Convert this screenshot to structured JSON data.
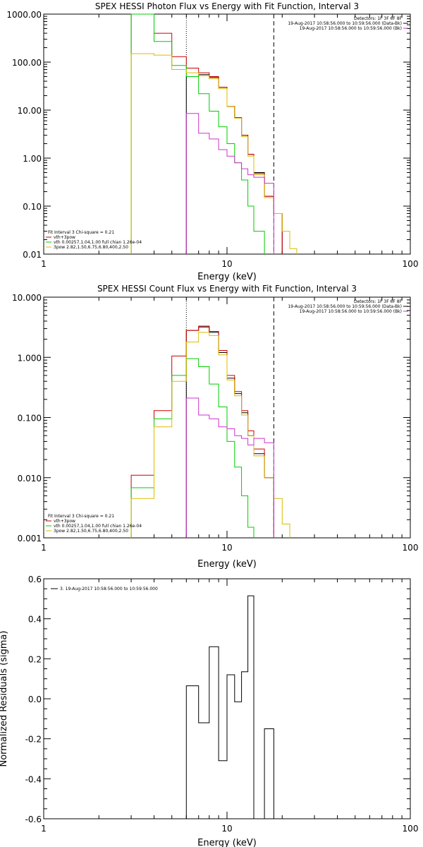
{
  "chart_data": [
    {
      "type": "line",
      "title": "SPEX HESSI Photon Flux vs Energy with Fit Function, Interval 3",
      "xlabel": "Energy (keV)",
      "ylabel": "",
      "xscale": "log",
      "yscale": "log",
      "xlim": [
        1,
        100
      ],
      "ylim": [
        0.01,
        1000
      ],
      "xticks": [
        {
          "v": 1,
          "label": "1"
        },
        {
          "v": 10,
          "label": "10"
        },
        {
          "v": 100,
          "label": "100"
        }
      ],
      "yticks": [
        {
          "v": 1000,
          "label": "1000.00"
        },
        {
          "v": 100,
          "label": "100.00"
        },
        {
          "v": 10,
          "label": "10.00"
        },
        {
          "v": 1,
          "label": "1.00"
        },
        {
          "v": 0.1,
          "label": "0.10"
        },
        {
          "v": 0.01,
          "label": "0.01"
        }
      ],
      "vlines": [
        {
          "x": 6,
          "style": "dotted"
        },
        {
          "x": 18,
          "style": "dashed"
        }
      ],
      "legend_top": [
        "Detectors: 1F 3F 6F 8F",
        "19-Aug-2017 10:58:56.000 to 10:59:56.000 (Data-Bk)",
        "19-Aug-2017 10:58:56.000 to 10:59:56.000 (Bk)"
      ],
      "legend_top_colors": [
        "",
        "#000000",
        "#cc33cc"
      ],
      "legend_bottom": [
        "Fit Interval 3   Chi-square = 0.21",
        "vth+3pow",
        "vth 0.00257,1.04,1.00  full chian 1.26e-04",
        "3pow 2.82,1.50,6.75,6.80,400,2.50"
      ],
      "legend_bottom_colors": [
        "",
        "#cc0000",
        "#00cc00",
        "#ddbb00"
      ],
      "edges": [
        3.0,
        4.0,
        5.0,
        6.0,
        7.0,
        8.0,
        9.0,
        10.0,
        11.0,
        12.0,
        13.0,
        14.0,
        16.0,
        18.0,
        20.0,
        22.0,
        24.0
      ],
      "series": [
        {
          "color": "#000000",
          "values": [
            null,
            null,
            null,
            50.0,
            55.0,
            48.0,
            30.0,
            12.0,
            7.0,
            3.0,
            1.2,
            0.5,
            0.16,
            0.07,
            null,
            null
          ]
        },
        {
          "color": "#cc0000",
          "values": [
            1000.0,
            400.0,
            130.0,
            75.0,
            60.0,
            50.0,
            30.0,
            12.0,
            7.0,
            3.0,
            1.2,
            0.48,
            0.16,
            0.07,
            null,
            null
          ]
        },
        {
          "color": "#00cc00",
          "values": [
            1000.0,
            270.0,
            85.0,
            50.0,
            22.0,
            9.5,
            4.5,
            2.0,
            0.8,
            0.35,
            0.1,
            0.03,
            null,
            null,
            null,
            null
          ]
        },
        {
          "color": "#ddbb00",
          "values": [
            150.0,
            140.0,
            70.0,
            60.0,
            52.0,
            45.0,
            28.0,
            12.0,
            6.8,
            2.8,
            1.1,
            0.45,
            0.15,
            0.07,
            0.03,
            0.013
          ]
        },
        {
          "color": "#cc33cc",
          "values": [
            null,
            null,
            null,
            8.5,
            3.3,
            2.5,
            1.5,
            1.1,
            0.8,
            0.6,
            0.45,
            0.4,
            0.3,
            null,
            null,
            null
          ]
        }
      ]
    },
    {
      "type": "line",
      "title": "SPEX HESSI Count Flux vs Energy with Fit Function, Interval 3",
      "xlabel": "Energy (keV)",
      "ylabel": "",
      "xscale": "log",
      "yscale": "log",
      "xlim": [
        1,
        100
      ],
      "ylim": [
        0.001,
        10
      ],
      "xticks": [
        {
          "v": 1,
          "label": "1"
        },
        {
          "v": 10,
          "label": "10"
        },
        {
          "v": 100,
          "label": "100"
        }
      ],
      "yticks": [
        {
          "v": 10,
          "label": "10.000"
        },
        {
          "v": 1,
          "label": "1.000"
        },
        {
          "v": 0.1,
          "label": "0.100"
        },
        {
          "v": 0.01,
          "label": "0.010"
        },
        {
          "v": 0.001,
          "label": "0.001"
        }
      ],
      "vlines": [
        {
          "x": 6,
          "style": "dotted"
        },
        {
          "x": 18,
          "style": "dashed"
        }
      ],
      "legend_top": [
        "Detectors: 1F 3F 6F 8F",
        "19-Aug-2017 10:58:56.000 to 10:59:56.000 (Data-Bk)",
        "19-Aug-2017 10:58:56.000 to 10:59:56.000 (Bk)"
      ],
      "legend_top_colors": [
        "",
        "#000000",
        "#cc33cc"
      ],
      "legend_bottom": [
        "Fit Interval 3   Chi-square = 0.21",
        "vth+3pow",
        "vth 0.00257,1.04,1.00  full chian 1.26e-04",
        "3pow 2.82,1.50,6.75,6.80,400,2.50"
      ],
      "legend_bottom_colors": [
        "",
        "#cc0000",
        "#00cc00",
        "#ddbb00"
      ],
      "edges": [
        3.0,
        4.0,
        5.0,
        6.0,
        7.0,
        8.0,
        9.0,
        10.0,
        11.0,
        12.0,
        13.0,
        14.0,
        16.0,
        18.0,
        20.0,
        22.0,
        24.0
      ],
      "series": [
        {
          "color": "#000000",
          "values": [
            null,
            null,
            null,
            2.8,
            3.2,
            2.6,
            1.2,
            0.45,
            0.25,
            0.12,
            0.05,
            0.025,
            0.01,
            null,
            null,
            null
          ]
        },
        {
          "color": "#cc0000",
          "values": [
            0.011,
            0.13,
            1.05,
            2.8,
            3.3,
            2.7,
            1.3,
            0.5,
            0.27,
            0.13,
            0.06,
            0.03,
            0.01,
            null,
            null,
            null
          ]
        },
        {
          "color": "#00cc00",
          "values": [
            0.0068,
            0.095,
            0.5,
            0.95,
            0.7,
            0.36,
            0.15,
            0.04,
            0.015,
            0.005,
            0.0015,
            null,
            null,
            null,
            null,
            null
          ]
        },
        {
          "color": "#ddbb00",
          "values": [
            0.0045,
            0.07,
            0.4,
            1.8,
            2.6,
            2.3,
            1.1,
            0.42,
            0.23,
            0.11,
            0.05,
            0.023,
            0.01,
            0.0045,
            0.0017,
            null
          ]
        },
        {
          "color": "#cc33cc",
          "values": [
            null,
            null,
            null,
            0.21,
            0.11,
            0.095,
            0.07,
            0.065,
            0.05,
            0.045,
            0.035,
            0.045,
            0.038,
            null,
            null,
            null
          ]
        }
      ]
    },
    {
      "type": "line",
      "title": "",
      "xlabel": "Energy (keV)",
      "ylabel": "Normalized Residuals (sigma)",
      "xscale": "log",
      "yscale": "linear",
      "xlim": [
        1,
        100
      ],
      "ylim": [
        -0.6,
        0.6
      ],
      "xticks": [
        {
          "v": 1,
          "label": "1"
        },
        {
          "v": 10,
          "label": "10"
        },
        {
          "v": 100,
          "label": "100"
        }
      ],
      "yticks": [
        {
          "v": 0.6,
          "label": "0.6"
        },
        {
          "v": 0.4,
          "label": "0.4"
        },
        {
          "v": 0.2,
          "label": "0.2"
        },
        {
          "v": 0.0,
          "label": "0.0"
        },
        {
          "v": -0.2,
          "label": "-0.2"
        },
        {
          "v": -0.4,
          "label": "-0.4"
        },
        {
          "v": -0.6,
          "label": "-0.6"
        }
      ],
      "vlines": [],
      "legend_top_left": "3. 19-Aug-2017 10:58:56.000 to 10:59:56.000",
      "edges": [
        6.0,
        7.0,
        8.0,
        9.0,
        10.0,
        11.0,
        12.0,
        13.0,
        14.0,
        16.0,
        18.0
      ],
      "series": [
        {
          "color": "#000000",
          "values": [
            0.065,
            -0.12,
            0.26,
            -0.31,
            0.12,
            -0.015,
            0.135,
            0.515,
            -0.6,
            -0.15
          ]
        }
      ]
    }
  ]
}
